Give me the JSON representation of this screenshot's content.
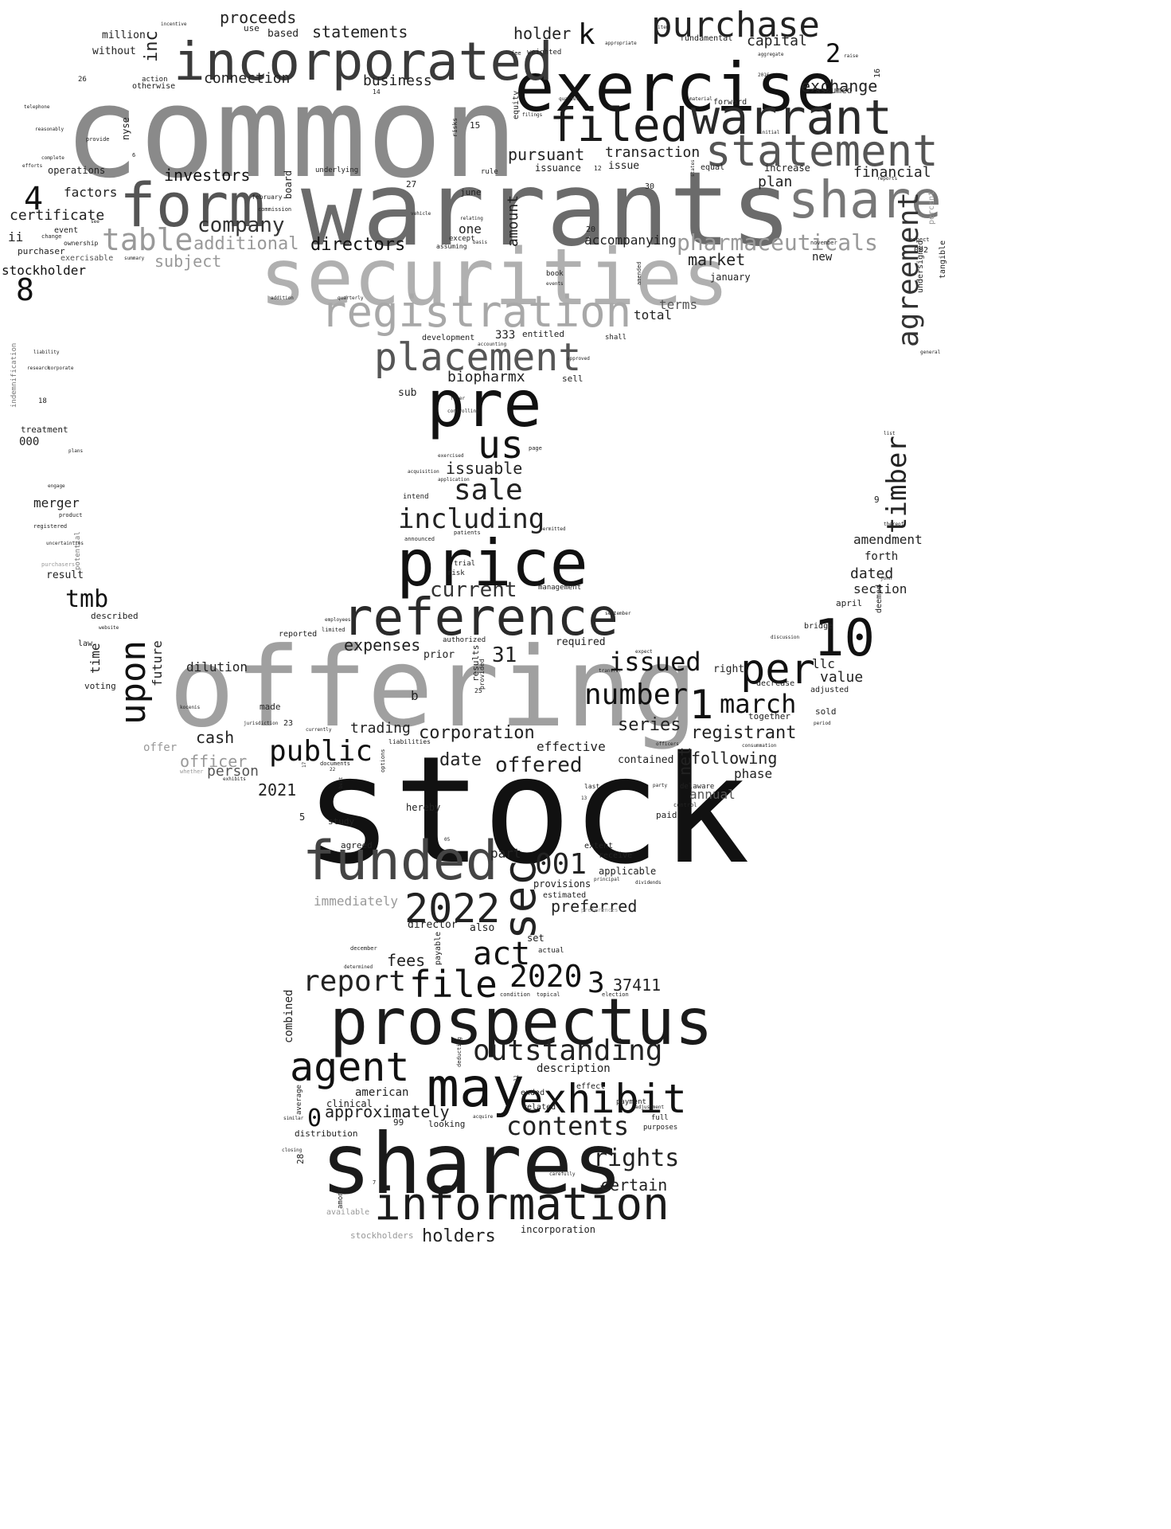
{
  "words": {
    "common": "common",
    "warrants": "warrants",
    "stock": "stock",
    "offering": "offering",
    "securities": "securities",
    "exercise": "exercise",
    "incorporated": "incorporated",
    "registration": "registration",
    "form": "form",
    "warrant": "warrant",
    "statement": "statement",
    "share": "share",
    "shares": "shares",
    "prospectus": "prospectus",
    "price": "price",
    "reference": "reference",
    "funded": "funded",
    "pre": "pre",
    "placement": "placement",
    "filed": "filed",
    "purchase": "purchase",
    "information": "information",
    "may": "may",
    "exhibit": "exhibit",
    "agent": "agent",
    "file": "file",
    "act": "act",
    "sec": "sec",
    "y2022": "2022",
    "y2020": "2020",
    "n10": "10",
    "per": "per",
    "upon": "upon",
    "us": "us",
    "table": "table",
    "pharmaceuticals": "pharmaceuticals",
    "agreement": "agreement",
    "timber": "timber",
    "company": "company",
    "public": "public",
    "outstanding": "outstanding",
    "report": "report",
    "contents": "contents",
    "rights": "rights",
    "number": "number",
    "march": "march",
    "issued": "issued",
    "sale": "sale",
    "including": "including",
    "current": "current",
    "tmb": "tmb",
    "n001": "001",
    "n1": "1",
    "n4": "4",
    "n8": "8",
    "n2": "2",
    "n3": "3",
    "n0": "0",
    "k": "k",
    "inc": "inc",
    "directors": "directors",
    "investors": "investors",
    "proceeds": "proceeds",
    "statements": "statements",
    "connection": "connection",
    "business": "business",
    "holder": "holder",
    "exchange": "exchange",
    "capital": "capital",
    "pursuant": "pursuant",
    "transaction": "transaction",
    "financial": "financial",
    "plan": "plan",
    "certificate": "certificate",
    "factors": "factors",
    "additional": "additional",
    "subject": "subject",
    "market": "market",
    "terms": "terms",
    "total": "total",
    "stockholder": "stockholder",
    "biopharmx": "biopharmx",
    "issuable": "issuable",
    "one": "one",
    "amount": "amount",
    "accompanying": "accompanying",
    "merger": "merger",
    "expenses": "expenses",
    "n31": "31",
    "cash": "cash",
    "officer": "officer",
    "person": "person",
    "y2021": "2021",
    "trading": "trading",
    "corporation": "corporation",
    "date": "date",
    "offered": "offered",
    "series": "series",
    "registrant": "registrant",
    "following": "following",
    "net": "net",
    "effective": "effective",
    "preferred": "preferred",
    "part": "part",
    "holders": "holders",
    "fees": "fees",
    "n37411": "37411",
    "approximately": "approximately",
    "certain": "certain",
    "description": "description",
    "american": "american",
    "combined": "combined",
    "time": "time",
    "future": "future",
    "dilution": "dilution",
    "value": "value",
    "llc": "llc",
    "amendment": "amendment",
    "dated": "dated",
    "section": "section",
    "forth": "forth",
    "phase": "phase",
    "annual": "annual",
    "immediately": "immediately",
    "million": "million",
    "without": "without",
    "ii": "ii",
    "n000": "000",
    "treatment": "treatment",
    "operations": "operations",
    "purchaser": "purchaser",
    "event": "event",
    "exercisable": "exercisable",
    "nyse": "nyse",
    "board": "board",
    "new": "new",
    "january": "january",
    "based": "based",
    "use": "use",
    "assumed": "assumed",
    "increase": "increase",
    "equity": "equity",
    "issue": "issue",
    "issuance": "issuance",
    "june": "june",
    "development": "development",
    "entitled": "entitled",
    "n333": "333",
    "sub": "sub",
    "sell": "sell",
    "intend": "intend",
    "result": "result",
    "described": "described",
    "voting": "voting",
    "reported": "reported",
    "made": "made",
    "b": "b",
    "offer": "offer",
    "authorized": "authorized",
    "required": "required",
    "prior": "prior",
    "results": "results",
    "right": "right",
    "adjusted": "adjusted",
    "sold": "sold",
    "together": "together",
    "delaware": "delaware",
    "paid": "paid",
    "contained": "contained",
    "hereby": "hereby",
    "study": "study",
    "agreed": "agreed",
    "extent": "extent",
    "receive": "receive",
    "applicable": "applicable",
    "provisions": "provisions",
    "estimated": "estimated",
    "director": "director",
    "also": "also",
    "set": "set",
    "actual": "actual",
    "payable": "payable",
    "clinical": "clinical",
    "ended": "ended",
    "effect": "effect",
    "related": "related",
    "payment": "payment",
    "looking": "looking",
    "n99": "99",
    "distribution": "distribution",
    "average": "average",
    "purposes": "purposes",
    "full": "full",
    "among": "among",
    "available": "available",
    "stockholders": "stockholders",
    "incorporation": "incorporation",
    "n28": "28",
    "n5": "5",
    "n23": "23",
    "n20": "20",
    "n27": "27",
    "n30": "30",
    "n15": "15",
    "n16": "16",
    "n18": "18",
    "n26": "26",
    "n9": "9",
    "april": "april",
    "deemed": "deemed",
    "bridge": "bridge",
    "decrease": "decrease",
    "tangible": "tangible",
    "undersigned": "undersigned",
    "percent": "percent",
    "indemnification": "indemnification",
    "potential": "potential",
    "law": "law",
    "whether": "whether",
    "shall": "shall",
    "book": "book",
    "fundamental": "fundamental",
    "weighted": "weighted",
    "forward": "forward",
    "equal": "equal",
    "rule": "rule",
    "general": "general",
    "management": "management",
    "trial": "trial",
    "risk": "risk",
    "quarter": "quarter",
    "except": "except",
    "assuming": "assuming",
    "amended": "amended",
    "uncertainties": "uncertainties",
    "options": "options",
    "provided": "provided",
    "n002": "002",
    "respect": "respect",
    "last": "last",
    "control": "control",
    "preferences": "preferences",
    "november": "november",
    "reports": "reports",
    "incentive": "incentive",
    "telephone": "telephone",
    "otherwise": "otherwise",
    "action": "action",
    "february": "february",
    "underlying": "underlying",
    "commission": "commission",
    "ownership": "ownership",
    "change": "change",
    "registered": "registered",
    "product": "product",
    "purchasers": "purchasers",
    "september": "september",
    "liabilities": "liabilities",
    "documents": "documents",
    "condition": "condition",
    "topical": "topical",
    "election": "election",
    "dividends": "dividends",
    "principal": "principal",
    "deducting": "deducting",
    "adjustment": "adjustment",
    "acquire": "acquire",
    "closing": "closing",
    "similar": "similar",
    "best": "best",
    "announced": "announced",
    "patients": "patients",
    "application": "application",
    "acquisition": "acquisition",
    "exercised": "exercised",
    "page": "page",
    "controlling": "controlling",
    "filer": "filer",
    "permitted": "permitted",
    "party": "party",
    "officers": "officers",
    "expect": "expect",
    "consummation": "consummation",
    "discussion": "discussion",
    "period": "period",
    "complete": "complete",
    "efforts": "efforts",
    "aggregate": "aggregate",
    "appropriate": "appropriate",
    "raise": "raise",
    "fee": "fee",
    "filings": "filings",
    "material": "material",
    "initial": "initial",
    "provide": "provide",
    "risks": "risks",
    "terminate": "terminate",
    "thereof": "thereof",
    "list": "list",
    "stated": "stated",
    "events": "events",
    "approved": "approved",
    "john": "john",
    "kocenis": "kocenis",
    "website": "website",
    "engage": "engage",
    "plans": "plans",
    "research": "research",
    "corporate": "corporate",
    "liability": "liability",
    "addition": "addition",
    "quarterly": "quarterly",
    "vehicle": "vehicle",
    "relating": "relating",
    "basis": "basis",
    "accounting": "accounting",
    "jurisdiction": "jurisdiction",
    "currently": "currently",
    "exhibits": "exhibits",
    "reasonably": "reasonably",
    "see": "see",
    "summary": "summary",
    "item": "item",
    "states": "states",
    "transfer": "transfer",
    "determined": "determined",
    "december": "december",
    "limited": "limited",
    "employees": "employees",
    "carefully": "carefully",
    "well": "well",
    "n12": "12",
    "n14": "14",
    "n13": "13",
    "n25": "25",
    "n6": "6",
    "n7": "7",
    "n22": "22",
    "n2016": "2016",
    "n05": "05",
    "n17": "17",
    "c": "c",
    "f": "f"
  }
}
